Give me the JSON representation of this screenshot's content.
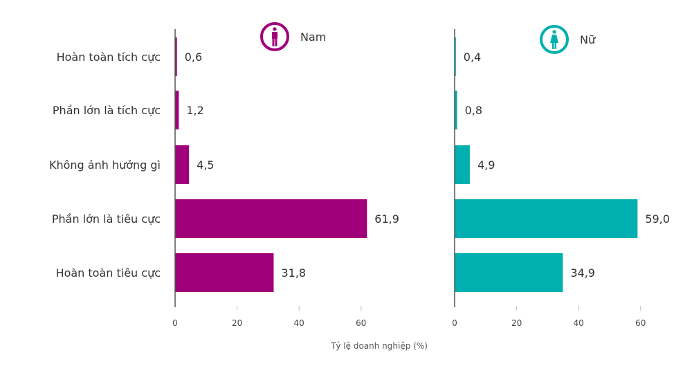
{
  "chart_data": {
    "type": "bar",
    "orientation": "horizontal",
    "categories": [
      "Hoàn toàn tích cực",
      "Phần lớn là tích cực",
      "Không ảnh hưởng gì",
      "Phần lớn là tiêu cực",
      "Hoàn toàn tiêu cực"
    ],
    "series": [
      {
        "name": "Nam",
        "color": "#a0007a",
        "icon": "male-person-icon",
        "values": [
          0.6,
          1.2,
          4.5,
          61.9,
          31.8
        ],
        "labels": [
          "0,6",
          "1,2",
          "4,5",
          "61,9",
          "31,8"
        ]
      },
      {
        "name": "Nữ",
        "color": "#00b0b0",
        "icon": "female-person-icon",
        "values": [
          0.4,
          0.8,
          4.9,
          59.0,
          34.9
        ],
        "labels": [
          "0,4",
          "0,8",
          "4,9",
          "59,0",
          "34,9"
        ]
      }
    ],
    "xticks": [
      0,
      20,
      40,
      60
    ],
    "xlim": [
      0,
      60
    ],
    "xlabel": "Tỷ lệ doanh nghiệp (%)",
    "grid": false
  }
}
